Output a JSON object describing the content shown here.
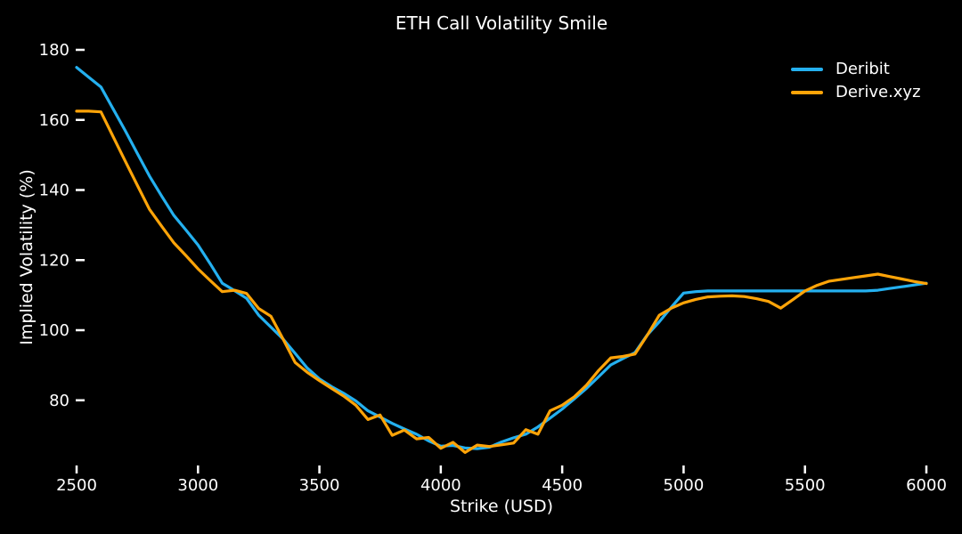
{
  "figure": {
    "background": "#000000",
    "text_color": "#ffffff"
  },
  "chart_data": {
    "type": "line",
    "title": "ETH Call Volatility Smile",
    "xlabel": "Strike (USD)",
    "ylabel": "Implied Volatility (%)",
    "xlim": [
      2500,
      6000
    ],
    "ylim": [
      61,
      183
    ],
    "grid": false,
    "legend_position": "upper right",
    "x_ticks": [
      2500,
      3000,
      3500,
      4000,
      4500,
      5000,
      5500,
      6000
    ],
    "y_ticks": [
      80,
      100,
      120,
      140,
      160,
      180
    ],
    "x": [
      2500,
      2550,
      2600,
      2650,
      2700,
      2750,
      2800,
      2850,
      2900,
      2950,
      3000,
      3050,
      3100,
      3150,
      3200,
      3250,
      3300,
      3350,
      3400,
      3450,
      3500,
      3550,
      3600,
      3650,
      3700,
      3750,
      3800,
      3850,
      3900,
      3950,
      4000,
      4050,
      4100,
      4150,
      4200,
      4250,
      4300,
      4350,
      4400,
      4450,
      4500,
      4550,
      4600,
      4650,
      4700,
      4750,
      4800,
      4850,
      4900,
      4950,
      5000,
      5050,
      5100,
      5150,
      5200,
      5250,
      5300,
      5350,
      5400,
      5450,
      5500,
      5550,
      5600,
      5650,
      5700,
      5750,
      5800,
      5850,
      5900,
      5950,
      6000
    ],
    "series": [
      {
        "name": "Deribit",
        "color": "#24b0ef",
        "values": [
          175.0,
          172.2,
          169.4,
          163.2,
          157.0,
          150.5,
          144.0,
          138.3,
          132.8,
          128.6,
          124.3,
          119.0,
          113.4,
          111.3,
          109.1,
          104.3,
          100.9,
          97.5,
          93.4,
          89.2,
          86.1,
          83.9,
          82.0,
          79.8,
          77.0,
          75.2,
          73.4,
          71.8,
          70.3,
          68.4,
          66.9,
          67.1,
          66.4,
          66.2,
          66.6,
          68.1,
          69.3,
          70.3,
          72.4,
          74.9,
          77.5,
          80.4,
          83.4,
          86.7,
          90.1,
          91.9,
          93.6,
          98.6,
          102.4,
          106.6,
          110.6,
          111.0,
          111.2,
          111.2,
          111.2,
          111.2,
          111.2,
          111.2,
          111.2,
          111.2,
          111.2,
          111.2,
          111.2,
          111.2,
          111.2,
          111.2,
          111.4,
          111.9,
          112.4,
          112.9,
          113.4
        ]
      },
      {
        "name": "Derive.xyz",
        "color": "#ffa408",
        "values": [
          162.5,
          162.5,
          162.3,
          155.3,
          148.3,
          141.4,
          134.5,
          129.7,
          125.0,
          121.3,
          117.5,
          114.2,
          111.0,
          111.4,
          110.5,
          106.2,
          104.0,
          97.5,
          90.8,
          88.0,
          85.6,
          83.4,
          81.2,
          78.6,
          74.5,
          75.8,
          70.0,
          71.5,
          69.0,
          69.4,
          66.3,
          68.0,
          65.1,
          67.2,
          66.8,
          67.3,
          67.8,
          71.6,
          70.3,
          77.0,
          78.6,
          81.0,
          84.3,
          88.5,
          92.1,
          92.5,
          93.2,
          98.5,
          104.3,
          106.3,
          107.8,
          108.8,
          109.5,
          109.7,
          109.8,
          109.6,
          109.0,
          108.2,
          106.3,
          108.7,
          111.2,
          112.8,
          114.0,
          114.5,
          115.0,
          115.5,
          116.0,
          115.3,
          114.6,
          113.9,
          113.3
        ]
      }
    ]
  }
}
